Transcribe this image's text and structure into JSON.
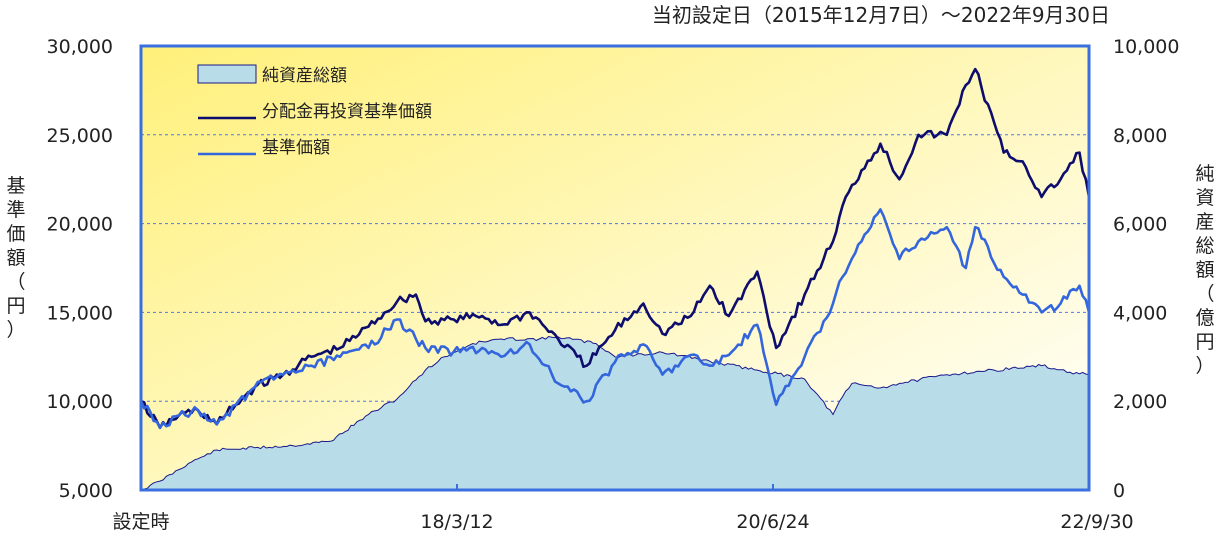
{
  "chart_data": {
    "type": "line",
    "title": "当初設定日（2015年12月7日）～2022年9月30日",
    "ylabel_left": [
      "基",
      "準",
      "価",
      "額",
      "（",
      "円",
      "）"
    ],
    "ylabel_right": [
      "純",
      "資",
      "産",
      "総",
      "額",
      "（",
      "億",
      "円",
      "）"
    ],
    "x_ticks": [
      "設定時",
      "18/3/12",
      "20/6/24",
      "22/9/30"
    ],
    "y_left_ticks": [
      "30,000",
      "25,000",
      "20,000",
      "15,000",
      "10,000",
      "5,000"
    ],
    "y_right_ticks": [
      "10,000",
      "8,000",
      "6,000",
      "4,000",
      "2,000",
      "0"
    ],
    "y_left_lim": [
      5000,
      30000
    ],
    "y_right_lim": [
      0,
      10000
    ],
    "grid": true,
    "legend_position": "top-left",
    "legend": [
      "純資産総額",
      "分配金再投資基準価額",
      "基準価額"
    ],
    "colors": {
      "nav_fill": "#b9dce9",
      "nav_line": "#1a1a8c",
      "reinvest_line": "#0d0d6e",
      "price_line": "#3366dd",
      "frame": "#3a6fe0",
      "bg_top": "#fff07a",
      "bg_bottom": "#ffffff"
    },
    "x_range": [
      0,
      100
    ],
    "series": [
      {
        "name": "純資産総額",
        "axis": "right",
        "x": [
          0,
          2,
          5,
          8,
          12,
          16,
          20,
          24,
          27,
          30,
          32,
          35,
          38,
          42,
          44,
          48,
          50,
          55,
          60,
          65,
          70,
          73,
          74,
          75,
          78,
          80,
          85,
          90,
          95,
          98,
          100
        ],
        "values": [
          0,
          200,
          600,
          900,
          950,
          1000,
          1100,
          1700,
          2050,
          2700,
          3000,
          3300,
          3400,
          3400,
          3450,
          3300,
          3000,
          3100,
          2900,
          2700,
          2500,
          1700,
          2100,
          2400,
          2300,
          2400,
          2600,
          2700,
          2800,
          2650,
          2600
        ]
      },
      {
        "name": "分配金再投資基準価額",
        "axis": "left",
        "x": [
          0,
          2,
          4,
          6,
          8,
          10,
          12,
          15,
          18,
          21,
          24,
          27,
          29,
          30,
          33,
          36,
          38,
          41,
          44,
          47,
          50,
          53,
          55,
          58,
          60,
          62,
          65,
          67,
          70,
          72,
          73,
          74,
          76,
          78,
          80,
          82,
          85,
          87,
          88,
          91,
          93,
          95,
          97,
          99,
          100
        ],
        "values": [
          10000,
          8500,
          9200,
          9500,
          8700,
          9800,
          10800,
          11500,
          12500,
          13000,
          14200,
          15600,
          16000,
          14500,
          14600,
          14800,
          14300,
          15000,
          13500,
          12000,
          14000,
          15500,
          13800,
          14800,
          16500,
          14800,
          17300,
          13000,
          16000,
          18000,
          19000,
          21000,
          23000,
          24500,
          22500,
          25000,
          25000,
          27800,
          28700,
          24000,
          23500,
          21500,
          22500,
          24000,
          21500
        ]
      },
      {
        "name": "基準価額",
        "axis": "left",
        "x": [
          0,
          2,
          4,
          6,
          8,
          10,
          12,
          15,
          18,
          21,
          24,
          27,
          29,
          30,
          33,
          36,
          38,
          41,
          44,
          47,
          50,
          53,
          55,
          58,
          60,
          62,
          65,
          67,
          70,
          72,
          73,
          74,
          76,
          78,
          80,
          82,
          85,
          87,
          88,
          91,
          93,
          95,
          97,
          99,
          100
        ],
        "values": [
          10000,
          8500,
          9200,
          9500,
          8700,
          9800,
          10800,
          11500,
          12000,
          12500,
          13000,
          14600,
          13500,
          13000,
          12800,
          13000,
          12500,
          13200,
          11000,
          10000,
          12200,
          13200,
          11500,
          12600,
          12000,
          12600,
          14300,
          9800,
          12500,
          14500,
          15500,
          17000,
          19000,
          20800,
          18000,
          19000,
          19800,
          17500,
          19800,
          17000,
          16000,
          15000,
          15500,
          16500,
          15000
        ]
      }
    ]
  }
}
